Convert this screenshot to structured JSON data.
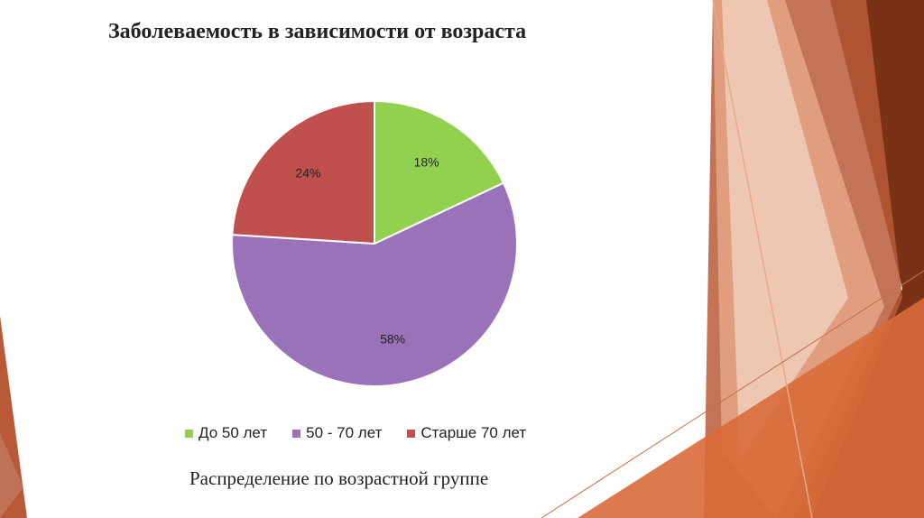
{
  "colors": {
    "green": "#92d050",
    "purple": "#9a72b9",
    "red": "#c0504d",
    "deco_dark": "#7a3216",
    "deco_mid": "#b85a38",
    "deco_light": "#e8a98a",
    "deco_pale": "#f4d8c8"
  },
  "chart_data": {
    "type": "pie",
    "title": "Заболеваемость в зависимости от возраста",
    "categories": [
      "До 50 лет",
      "50 - 70 лет",
      "Старше 70 лет"
    ],
    "values": [
      18,
      58,
      24
    ],
    "labels": [
      "18%",
      "58%",
      "24%"
    ],
    "colors": [
      "#92d050",
      "#9a72b9",
      "#c0504d"
    ],
    "legend_position": "bottom",
    "caption": "Распределение по возрастной группе"
  }
}
